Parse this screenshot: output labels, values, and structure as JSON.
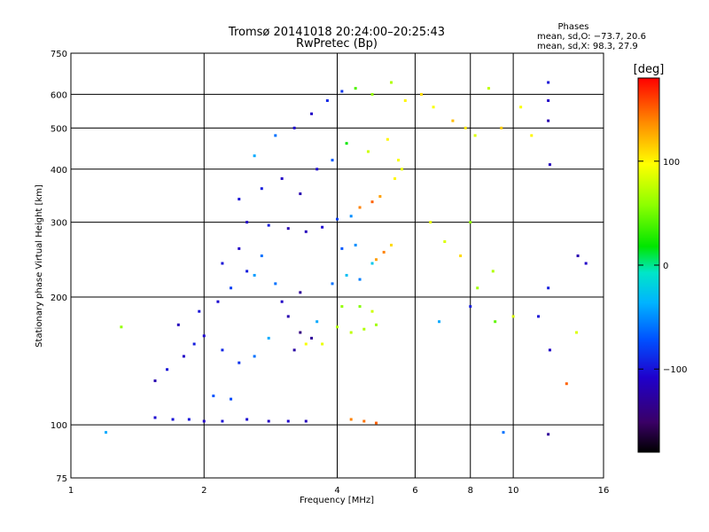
{
  "chart_data": {
    "type": "scatter",
    "title": "Tromsø 20141018 20:24:00–20:25:43",
    "subtitle": "RwPretec (Bp)",
    "xlabel": "Frequency [MHz]",
    "ylabel": "Stationary phase Virtual Height [km]",
    "x_scale": "log",
    "y_scale": "log",
    "xlim": [
      1,
      16
    ],
    "ylim": [
      75,
      750
    ],
    "x_ticks": [
      1,
      2,
      4,
      6,
      8,
      10,
      16
    ],
    "x_tick_labels": [
      "1",
      "2",
      "4",
      "6",
      "8",
      "10",
      "16"
    ],
    "y_ticks": [
      75,
      100,
      200,
      300,
      400,
      500,
      600,
      750
    ],
    "y_tick_labels": [
      "75",
      "100",
      "200",
      "300",
      "400",
      "500",
      "600",
      "750"
    ],
    "grid": true,
    "phase_box": {
      "title": "Phases",
      "line_o": "mean, sd,O: −73.7, 20.6",
      "line_x": "mean, sd,X:  98.3, 27.9"
    },
    "colorbar": {
      "label": "[deg]",
      "range": [
        -180,
        180
      ],
      "ticks": [
        100,
        0,
        -100
      ],
      "tick_labels": [
        "100",
        "0",
        "−100"
      ],
      "colormap": "rainbow"
    },
    "series": [
      {
        "points": [
          [
            1.55,
            104,
            -105
          ],
          [
            1.7,
            103,
            -100
          ],
          [
            1.85,
            103,
            -98
          ],
          [
            2.0,
            102,
            -110
          ],
          [
            2.2,
            102,
            -102
          ],
          [
            2.5,
            103,
            -104
          ],
          [
            2.8,
            102,
            -112
          ],
          [
            3.1,
            102,
            -108
          ],
          [
            3.4,
            102,
            -115
          ],
          [
            2.1,
            117,
            -70
          ],
          [
            2.3,
            115,
            -75
          ],
          [
            1.55,
            127,
            -120
          ],
          [
            1.65,
            135,
            -100
          ],
          [
            1.8,
            145,
            -110
          ],
          [
            1.9,
            155,
            -95
          ],
          [
            2.0,
            162,
            -105
          ],
          [
            2.2,
            150,
            -90
          ],
          [
            2.4,
            140,
            -85
          ],
          [
            2.6,
            145,
            -60
          ],
          [
            2.8,
            160,
            -40
          ],
          [
            1.75,
            172,
            -115
          ],
          [
            1.95,
            185,
            -100
          ],
          [
            2.15,
            195,
            -105
          ],
          [
            2.3,
            210,
            -80
          ],
          [
            2.5,
            230,
            -95
          ],
          [
            2.7,
            250,
            -60
          ],
          [
            2.4,
            260,
            -110
          ],
          [
            2.2,
            240,
            -100
          ],
          [
            2.6,
            225,
            -45
          ],
          [
            2.9,
            215,
            -60
          ],
          [
            3.1,
            180,
            -120
          ],
          [
            3.3,
            165,
            -140
          ],
          [
            3.5,
            160,
            -130
          ],
          [
            3.2,
            150,
            -125
          ],
          [
            3.0,
            195,
            -110
          ],
          [
            3.3,
            205,
            -130
          ],
          [
            3.6,
            175,
            -40
          ],
          [
            3.7,
            155,
            90
          ],
          [
            3.4,
            155,
            95
          ],
          [
            4.0,
            170,
            70
          ],
          [
            4.3,
            165,
            75
          ],
          [
            4.6,
            168,
            70
          ],
          [
            4.9,
            172,
            65
          ],
          [
            4.1,
            190,
            60
          ],
          [
            4.5,
            190,
            55
          ],
          [
            4.8,
            185,
            80
          ],
          [
            3.9,
            215,
            -60
          ],
          [
            4.2,
            225,
            -30
          ],
          [
            4.5,
            220,
            -55
          ],
          [
            4.8,
            240,
            -25
          ],
          [
            4.1,
            260,
            -70
          ],
          [
            4.4,
            265,
            -50
          ],
          [
            4.9,
            245,
            130
          ],
          [
            5.1,
            255,
            140
          ],
          [
            5.3,
            265,
            110
          ],
          [
            2.5,
            300,
            -110
          ],
          [
            2.8,
            295,
            -95
          ],
          [
            3.1,
            290,
            -120
          ],
          [
            3.4,
            285,
            -115
          ],
          [
            3.7,
            292,
            -105
          ],
          [
            4.0,
            305,
            -80
          ],
          [
            4.3,
            310,
            -50
          ],
          [
            4.5,
            325,
            140
          ],
          [
            4.8,
            335,
            150
          ],
          [
            5.0,
            345,
            130
          ],
          [
            5.4,
            380,
            100
          ],
          [
            5.6,
            400,
            90
          ],
          [
            2.4,
            340,
            -100
          ],
          [
            2.7,
            360,
            -95
          ],
          [
            3.0,
            380,
            -110
          ],
          [
            3.3,
            350,
            -120
          ],
          [
            3.6,
            400,
            -105
          ],
          [
            3.9,
            420,
            -70
          ],
          [
            4.2,
            460,
            20
          ],
          [
            4.7,
            440,
            80
          ],
          [
            5.2,
            470,
            100
          ],
          [
            5.5,
            420,
            95
          ],
          [
            2.6,
            430,
            -40
          ],
          [
            2.9,
            480,
            -60
          ],
          [
            3.2,
            500,
            -105
          ],
          [
            3.5,
            540,
            -110
          ],
          [
            3.8,
            580,
            -90
          ],
          [
            4.1,
            610,
            -85
          ],
          [
            4.4,
            620,
            40
          ],
          [
            4.8,
            600,
            60
          ],
          [
            5.3,
            640,
            70
          ],
          [
            5.7,
            580,
            100
          ],
          [
            6.2,
            600,
            110
          ],
          [
            6.6,
            560,
            95
          ],
          [
            7.3,
            520,
            120
          ],
          [
            7.8,
            500,
            105
          ],
          [
            8.2,
            480,
            85
          ],
          [
            8.8,
            620,
            75
          ],
          [
            9.4,
            500,
            115
          ],
          [
            10.4,
            560,
            95
          ],
          [
            11.0,
            480,
            100
          ],
          [
            12.0,
            640,
            -100
          ],
          [
            12.0,
            580,
            -110
          ],
          [
            12.0,
            520,
            -120
          ],
          [
            12.1,
            410,
            -115
          ],
          [
            6.5,
            300,
            90
          ],
          [
            7.0,
            270,
            85
          ],
          [
            7.6,
            250,
            110
          ],
          [
            8.0,
            300,
            60
          ],
          [
            8.3,
            210,
            65
          ],
          [
            8.0,
            190,
            -95
          ],
          [
            9.0,
            230,
            70
          ],
          [
            10.0,
            180,
            85
          ],
          [
            11.4,
            180,
            -100
          ],
          [
            12.0,
            210,
            -95
          ],
          [
            12.1,
            150,
            -110
          ],
          [
            14.0,
            250,
            -120
          ],
          [
            14.6,
            240,
            -110
          ],
          [
            13.2,
            125,
            150
          ],
          [
            12.0,
            95,
            -130
          ],
          [
            9.5,
            96,
            -60
          ],
          [
            4.3,
            103,
            140
          ],
          [
            4.6,
            102,
            145
          ],
          [
            4.9,
            101,
            150
          ],
          [
            1.3,
            170,
            60
          ],
          [
            6.8,
            175,
            -40
          ],
          [
            9.1,
            175,
            45
          ],
          [
            13.9,
            165,
            85
          ],
          [
            1.2,
            96,
            -40
          ]
        ]
      }
    ]
  }
}
